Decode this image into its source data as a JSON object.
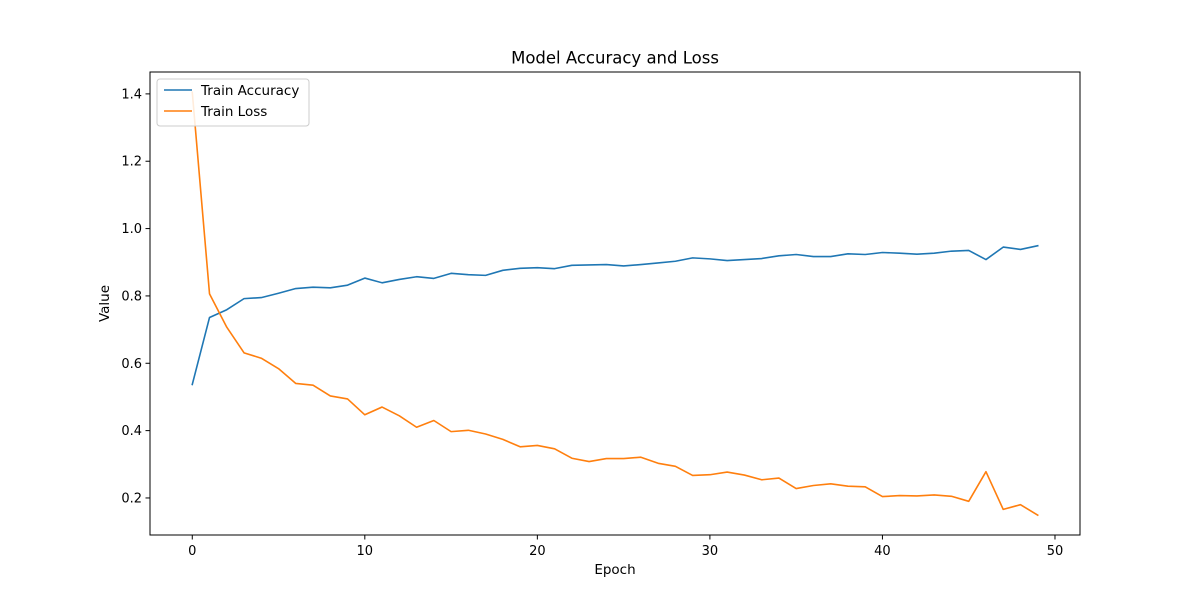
{
  "chart_data": {
    "type": "line",
    "title": "Model Accuracy and Loss",
    "xlabel": "Epoch",
    "ylabel": "Value",
    "xlim": [
      -2.45,
      51.45
    ],
    "ylim": [
      0.09,
      1.465
    ],
    "xticks": [
      0,
      10,
      20,
      30,
      40,
      50
    ],
    "yticks": [
      0.2,
      0.4,
      0.6,
      0.8,
      1.0,
      1.2,
      1.4
    ],
    "xtick_labels": [
      "0",
      "10",
      "20",
      "30",
      "40",
      "50"
    ],
    "ytick_labels": [
      "0.2",
      "0.4",
      "0.6",
      "0.8",
      "1.0",
      "1.2",
      "1.4"
    ],
    "grid": false,
    "legend_position": "top-left",
    "x": [
      0,
      1,
      2,
      3,
      4,
      5,
      6,
      7,
      8,
      9,
      10,
      11,
      12,
      13,
      14,
      15,
      16,
      17,
      18,
      19,
      20,
      21,
      22,
      23,
      24,
      25,
      26,
      27,
      28,
      29,
      30,
      31,
      32,
      33,
      34,
      35,
      36,
      37,
      38,
      39,
      40,
      41,
      42,
      43,
      44,
      45,
      46,
      47,
      48,
      49
    ],
    "series": [
      {
        "name": "Train Accuracy",
        "color": "#1f77b4",
        "values": [
          0.537,
          0.736,
          0.759,
          0.792,
          0.795,
          0.808,
          0.822,
          0.826,
          0.824,
          0.832,
          0.853,
          0.839,
          0.849,
          0.857,
          0.852,
          0.867,
          0.863,
          0.861,
          0.876,
          0.882,
          0.884,
          0.881,
          0.891,
          0.892,
          0.893,
          0.889,
          0.893,
          0.898,
          0.903,
          0.913,
          0.91,
          0.905,
          0.908,
          0.911,
          0.919,
          0.923,
          0.917,
          0.917,
          0.925,
          0.923,
          0.929,
          0.927,
          0.924,
          0.927,
          0.933,
          0.935,
          0.908,
          0.945,
          0.938,
          0.949
        ]
      },
      {
        "name": "Train Loss",
        "color": "#ff7f0e",
        "values": [
          1.405,
          0.806,
          0.707,
          0.631,
          0.615,
          0.584,
          0.54,
          0.535,
          0.503,
          0.494,
          0.447,
          0.47,
          0.444,
          0.41,
          0.43,
          0.397,
          0.401,
          0.39,
          0.374,
          0.352,
          0.356,
          0.346,
          0.318,
          0.308,
          0.317,
          0.317,
          0.321,
          0.303,
          0.294,
          0.267,
          0.269,
          0.277,
          0.268,
          0.254,
          0.259,
          0.228,
          0.237,
          0.242,
          0.235,
          0.233,
          0.204,
          0.207,
          0.206,
          0.209,
          0.205,
          0.19,
          0.278,
          0.166,
          0.18,
          0.149
        ]
      }
    ]
  }
}
